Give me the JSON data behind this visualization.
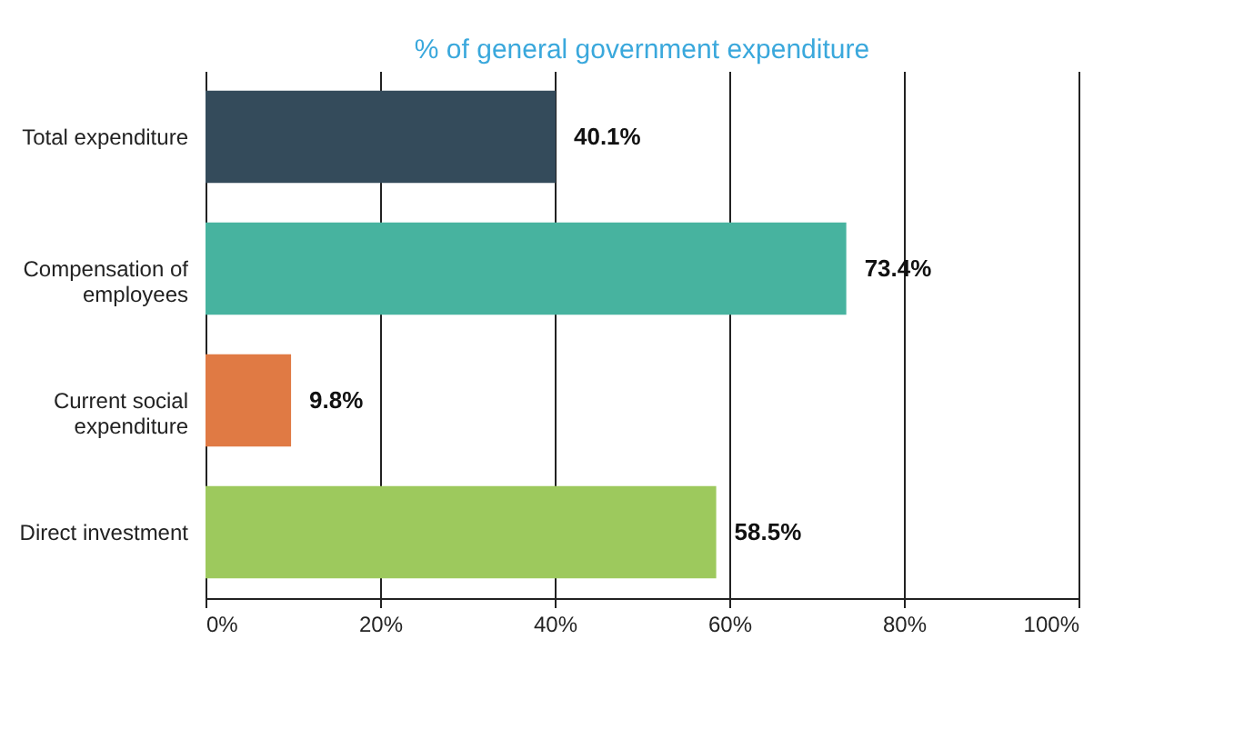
{
  "chart_data": {
    "type": "bar",
    "orientation": "horizontal",
    "title": "% of general government expenditure",
    "categories": [
      "Total expenditure",
      "Compensation of employees",
      "Current social expenditure",
      "Direct investment"
    ],
    "values": [
      40.1,
      73.4,
      9.8,
      58.5
    ],
    "colors": [
      "#344b5b",
      "#47b39f",
      "#e07a44",
      "#9dc95d"
    ],
    "value_labels": [
      "40.1%",
      "73.4%",
      "9.8%",
      "58.5%"
    ],
    "xlim": [
      0,
      100
    ],
    "xticks": [
      {
        "value": 0,
        "label": "0%"
      },
      {
        "value": 20,
        "label": "20%"
      },
      {
        "value": 40,
        "label": "40%"
      },
      {
        "value": 60,
        "label": "60%"
      },
      {
        "value": 80,
        "label": "80%"
      },
      {
        "value": 100,
        "label": "100%"
      }
    ],
    "grid": "x"
  }
}
